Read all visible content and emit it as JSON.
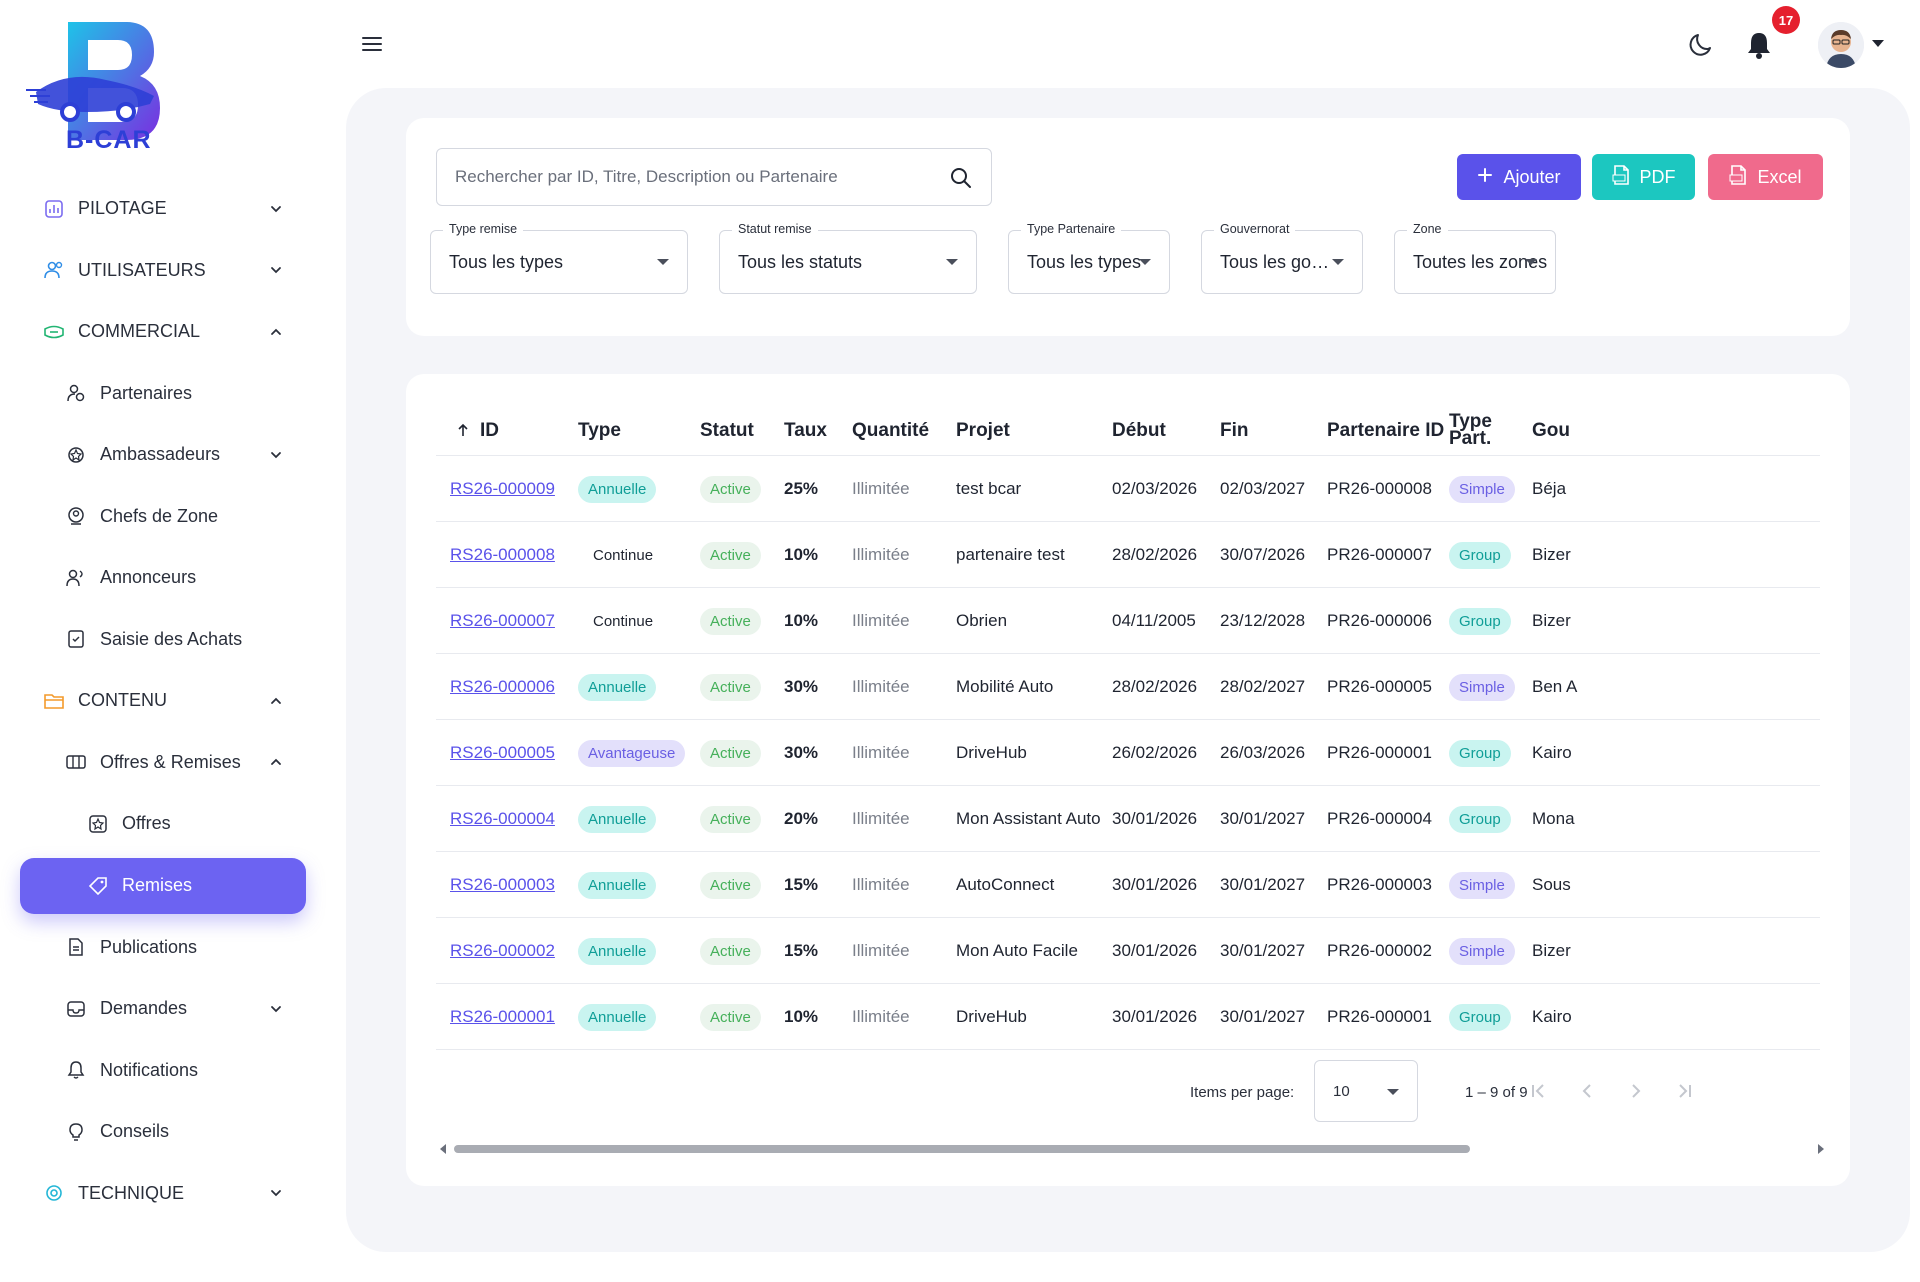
{
  "brand": {
    "logo_text": "B-CAR"
  },
  "sidebar": {
    "items": [
      {
        "label": "PILOTAGE",
        "level": 0,
        "icon": "chart-icon",
        "chevron": "down"
      },
      {
        "label": "UTILISATEURS",
        "level": 0,
        "icon": "users-icon",
        "chevron": "down"
      },
      {
        "label": "COMMERCIAL",
        "level": 0,
        "icon": "commercial-icon",
        "chevron": "up"
      },
      {
        "label": "Partenaires",
        "level": 1,
        "icon": "partner-icon"
      },
      {
        "label": "Ambassadeurs",
        "level": 1,
        "icon": "ambassador-icon",
        "chevron": "down"
      },
      {
        "label": "Chefs de Zone",
        "level": 1,
        "icon": "zone-chief-icon"
      },
      {
        "label": "Annonceurs",
        "level": 1,
        "icon": "advertiser-icon"
      },
      {
        "label": "Saisie des Achats",
        "level": 1,
        "icon": "purchase-entry-icon"
      },
      {
        "label": "CONTENU",
        "level": 0,
        "icon": "folder-icon",
        "chevron": "up"
      },
      {
        "label": "Offres & Remises",
        "level": 1,
        "icon": "offers-remises-icon",
        "chevron": "up"
      },
      {
        "label": "Offres",
        "level": 2,
        "icon": "offers-icon"
      },
      {
        "label": "Remises",
        "level": 2,
        "icon": "tag-icon",
        "active": true
      },
      {
        "label": "Publications",
        "level": 1,
        "icon": "publication-icon"
      },
      {
        "label": "Demandes",
        "level": 1,
        "icon": "inbox-icon",
        "chevron": "down"
      },
      {
        "label": "Notifications",
        "level": 1,
        "icon": "bell-icon"
      },
      {
        "label": "Conseils",
        "level": 1,
        "icon": "lightbulb-icon"
      },
      {
        "label": "TECHNIQUE",
        "level": 0,
        "icon": "technical-icon",
        "chevron": "down"
      }
    ]
  },
  "topbar": {
    "notification_count": "17"
  },
  "filters": {
    "search_placeholder": "Rechercher par ID, Titre, Description ou Partenaire",
    "buttons": {
      "add": "Ajouter",
      "pdf": "PDF",
      "excel": "Excel"
    },
    "selects": [
      {
        "label": "Type remise",
        "value": "Tous les types"
      },
      {
        "label": "Statut remise",
        "value": "Tous les statuts"
      },
      {
        "label": "Type Partenaire",
        "value": "Tous les types"
      },
      {
        "label": "Gouvernorat",
        "value": "Tous les gouvernorats"
      },
      {
        "label": "Zone",
        "value": "Toutes les zones"
      }
    ]
  },
  "table": {
    "columns": [
      "ID",
      "Type",
      "Statut",
      "Taux",
      "Quantité",
      "Projet",
      "Début",
      "Fin",
      "Partenaire ID",
      "Type Part.",
      "Gou"
    ],
    "sort_column": "ID",
    "rows": [
      {
        "id": "RS26-000009",
        "type": "Annuelle",
        "statut": "Active",
        "taux": "25%",
        "quantite": "Illimitée",
        "projet": "test bcar",
        "debut": "02/03/2026",
        "fin": "02/03/2027",
        "partenaire": "PR26-000008",
        "type_part": "Simple",
        "gouv": "Béja"
      },
      {
        "id": "RS26-000008",
        "type": "Continue",
        "statut": "Active",
        "taux": "10%",
        "quantite": "Illimitée",
        "projet": "partenaire test",
        "debut": "28/02/2026",
        "fin": "30/07/2026",
        "partenaire": "PR26-000007",
        "type_part": "Group",
        "gouv": "Bizer"
      },
      {
        "id": "RS26-000007",
        "type": "Continue",
        "statut": "Active",
        "taux": "10%",
        "quantite": "Illimitée",
        "projet": "Obrien",
        "debut": "04/11/2005",
        "fin": "23/12/2028",
        "partenaire": "PR26-000006",
        "type_part": "Group",
        "gouv": "Bizer"
      },
      {
        "id": "RS26-000006",
        "type": "Annuelle",
        "statut": "Active",
        "taux": "30%",
        "quantite": "Illimitée",
        "projet": "Mobilité Auto",
        "debut": "28/02/2026",
        "fin": "28/02/2027",
        "partenaire": "PR26-000005",
        "type_part": "Simple",
        "gouv": "Ben A"
      },
      {
        "id": "RS26-000005",
        "type": "Avantageuse",
        "statut": "Active",
        "taux": "30%",
        "quantite": "Illimitée",
        "projet": "DriveHub",
        "debut": "26/02/2026",
        "fin": "26/03/2026",
        "partenaire": "PR26-000001",
        "type_part": "Group",
        "gouv": "Kairo"
      },
      {
        "id": "RS26-000004",
        "type": "Annuelle",
        "statut": "Active",
        "taux": "20%",
        "quantite": "Illimitée",
        "projet": "Mon Assistant Auto",
        "debut": "30/01/2026",
        "fin": "30/01/2027",
        "partenaire": "PR26-000004",
        "type_part": "Group",
        "gouv": "Mona"
      },
      {
        "id": "RS26-000003",
        "type": "Annuelle",
        "statut": "Active",
        "taux": "15%",
        "quantite": "Illimitée",
        "projet": "AutoConnect",
        "debut": "30/01/2026",
        "fin": "30/01/2027",
        "partenaire": "PR26-000003",
        "type_part": "Simple",
        "gouv": "Sous"
      },
      {
        "id": "RS26-000002",
        "type": "Annuelle",
        "statut": "Active",
        "taux": "15%",
        "quantite": "Illimitée",
        "projet": "Mon Auto Facile",
        "debut": "30/01/2026",
        "fin": "30/01/2027",
        "partenaire": "PR26-000002",
        "type_part": "Simple",
        "gouv": "Bizer"
      },
      {
        "id": "RS26-000001",
        "type": "Annuelle",
        "statut": "Active",
        "taux": "10%",
        "quantite": "Illimitée",
        "projet": "DriveHub",
        "debut": "30/01/2026",
        "fin": "30/01/2027",
        "partenaire": "PR26-000001",
        "type_part": "Group",
        "gouv": "Kairo"
      }
    ]
  },
  "pagination": {
    "items_per_page_label": "Items per page:",
    "items_per_page": "10",
    "range": "1 – 9 of 9"
  },
  "colors": {
    "accent": "#5a52ea",
    "pdf": "#1cc7c0",
    "excel": "#f06a8c",
    "active_nav": "#6c63f2"
  }
}
